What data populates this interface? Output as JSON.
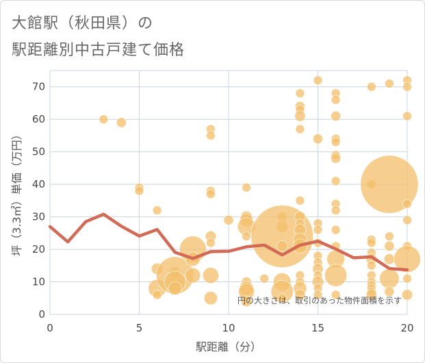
{
  "title_line1": "大館駅（秋田県）の",
  "title_line2": "駅距離別中古戸建て価格",
  "chart_data": {
    "type": "scatter",
    "xlabel": "駅距離（分）",
    "ylabel": "坪（3.3㎡）単価（万円）",
    "xlim": [
      0,
      20
    ],
    "ylim": [
      0,
      75
    ],
    "xticks": [
      0,
      5,
      10,
      15,
      20
    ],
    "yticks": [
      0,
      10,
      20,
      30,
      40,
      50,
      60,
      70
    ],
    "grid": true,
    "note": "円の大きさは、取引のあった物件面積を示す",
    "bubble_color": "#f3bf6b",
    "line_color": "#d36a55",
    "bubbles": [
      {
        "x": 3,
        "y": 60,
        "s": 1
      },
      {
        "x": 4,
        "y": 59,
        "s": 1.1
      },
      {
        "x": 5,
        "y": 39,
        "s": 1
      },
      {
        "x": 5,
        "y": 38,
        "s": 1
      },
      {
        "x": 6,
        "y": 32,
        "s": 1
      },
      {
        "x": 6,
        "y": 14,
        "s": 1.3
      },
      {
        "x": 6,
        "y": 8,
        "s": 2
      },
      {
        "x": 6,
        "y": 6,
        "s": 1
      },
      {
        "x": 7,
        "y": 13,
        "s": 1.2
      },
      {
        "x": 7,
        "y": 12,
        "s": 4.2
      },
      {
        "x": 7,
        "y": 10,
        "s": 2.4
      },
      {
        "x": 7,
        "y": 8,
        "s": 1.5
      },
      {
        "x": 8,
        "y": 20,
        "s": 3
      },
      {
        "x": 8,
        "y": 17,
        "s": 1.6
      },
      {
        "x": 8,
        "y": 12,
        "s": 1.7
      },
      {
        "x": 9,
        "y": 57,
        "s": 1
      },
      {
        "x": 9,
        "y": 55,
        "s": 1
      },
      {
        "x": 9,
        "y": 38,
        "s": 1
      },
      {
        "x": 9,
        "y": 37,
        "s": 1
      },
      {
        "x": 9,
        "y": 24,
        "s": 1.2
      },
      {
        "x": 9,
        "y": 22,
        "s": 1
      },
      {
        "x": 9,
        "y": 12,
        "s": 1.8
      },
      {
        "x": 9,
        "y": 5,
        "s": 1.5
      },
      {
        "x": 10,
        "y": 29,
        "s": 1.1
      },
      {
        "x": 11,
        "y": 39,
        "s": 1
      },
      {
        "x": 11,
        "y": 30,
        "s": 1.3
      },
      {
        "x": 11,
        "y": 29,
        "s": 1.5
      },
      {
        "x": 11,
        "y": 27,
        "s": 2
      },
      {
        "x": 11,
        "y": 24,
        "s": 1
      },
      {
        "x": 11,
        "y": 10,
        "s": 1.1
      },
      {
        "x": 11,
        "y": 8,
        "s": 1.6
      },
      {
        "x": 11,
        "y": 7,
        "s": 1.8
      },
      {
        "x": 11,
        "y": 4,
        "s": 1.2
      },
      {
        "x": 12,
        "y": 11,
        "s": 1
      },
      {
        "x": 13,
        "y": 30,
        "s": 1.1
      },
      {
        "x": 13,
        "y": 27,
        "s": 1.3
      },
      {
        "x": 13,
        "y": 24,
        "s": 7
      },
      {
        "x": 13,
        "y": 21,
        "s": 1.2
      },
      {
        "x": 13,
        "y": 10,
        "s": 2
      },
      {
        "x": 13,
        "y": 7,
        "s": 2.5
      },
      {
        "x": 13,
        "y": 5,
        "s": 1
      },
      {
        "x": 14,
        "y": 68,
        "s": 1
      },
      {
        "x": 14,
        "y": 64,
        "s": 1.1
      },
      {
        "x": 14,
        "y": 63,
        "s": 1
      },
      {
        "x": 14,
        "y": 61,
        "s": 1.2
      },
      {
        "x": 14,
        "y": 57,
        "s": 1
      },
      {
        "x": 14,
        "y": 35,
        "s": 1
      },
      {
        "x": 14,
        "y": 30,
        "s": 1.2
      },
      {
        "x": 14,
        "y": 28,
        "s": 1
      },
      {
        "x": 14,
        "y": 26,
        "s": 1.3
      },
      {
        "x": 14,
        "y": 23,
        "s": 1.5
      },
      {
        "x": 14,
        "y": 21,
        "s": 1.6
      },
      {
        "x": 14,
        "y": 12,
        "s": 1
      },
      {
        "x": 14,
        "y": 10,
        "s": 1
      },
      {
        "x": 14,
        "y": 8,
        "s": 1.5
      },
      {
        "x": 14,
        "y": 6,
        "s": 1.2
      },
      {
        "x": 15,
        "y": 72,
        "s": 1
      },
      {
        "x": 15,
        "y": 54,
        "s": 1.1
      },
      {
        "x": 15,
        "y": 28,
        "s": 1
      },
      {
        "x": 15,
        "y": 26,
        "s": 1
      },
      {
        "x": 15,
        "y": 22,
        "s": 1
      },
      {
        "x": 15,
        "y": 18,
        "s": 1
      },
      {
        "x": 15,
        "y": 16,
        "s": 1
      },
      {
        "x": 15,
        "y": 14,
        "s": 1.2
      },
      {
        "x": 15,
        "y": 12,
        "s": 1
      },
      {
        "x": 15,
        "y": 10,
        "s": 1.3
      },
      {
        "x": 15,
        "y": 8,
        "s": 1
      },
      {
        "x": 15,
        "y": 6,
        "s": 1
      },
      {
        "x": 16,
        "y": 68,
        "s": 1
      },
      {
        "x": 16,
        "y": 66,
        "s": 1
      },
      {
        "x": 16,
        "y": 61,
        "s": 1.1
      },
      {
        "x": 16,
        "y": 54,
        "s": 1
      },
      {
        "x": 16,
        "y": 53,
        "s": 1
      },
      {
        "x": 16,
        "y": 49,
        "s": 1
      },
      {
        "x": 16,
        "y": 48,
        "s": 1.1
      },
      {
        "x": 16,
        "y": 41,
        "s": 1
      },
      {
        "x": 16,
        "y": 34,
        "s": 1
      },
      {
        "x": 16,
        "y": 32,
        "s": 1
      },
      {
        "x": 16,
        "y": 26,
        "s": 1
      },
      {
        "x": 16,
        "y": 21,
        "s": 1
      },
      {
        "x": 16,
        "y": 17,
        "s": 2
      },
      {
        "x": 16,
        "y": 12,
        "s": 2.5
      },
      {
        "x": 16,
        "y": 6,
        "s": 1
      },
      {
        "x": 18,
        "y": 70,
        "s": 1
      },
      {
        "x": 18,
        "y": 40,
        "s": 1
      },
      {
        "x": 18,
        "y": 23,
        "s": 1
      },
      {
        "x": 18,
        "y": 22,
        "s": 1
      },
      {
        "x": 18,
        "y": 19,
        "s": 1
      },
      {
        "x": 18,
        "y": 17,
        "s": 1.2
      },
      {
        "x": 18,
        "y": 15,
        "s": 1
      },
      {
        "x": 18,
        "y": 12,
        "s": 1
      },
      {
        "x": 18,
        "y": 10,
        "s": 1
      },
      {
        "x": 18,
        "y": 9,
        "s": 1
      },
      {
        "x": 18,
        "y": 8,
        "s": 1
      },
      {
        "x": 18,
        "y": 7,
        "s": 1
      },
      {
        "x": 18,
        "y": 6,
        "s": 1.2
      },
      {
        "x": 19,
        "y": 71,
        "s": 1
      },
      {
        "x": 19,
        "y": 40,
        "s": 6.5
      },
      {
        "x": 19,
        "y": 24,
        "s": 1
      },
      {
        "x": 19,
        "y": 21,
        "s": 1.1
      },
      {
        "x": 19,
        "y": 17,
        "s": 1.2
      },
      {
        "x": 19,
        "y": 11,
        "s": 2.2
      },
      {
        "x": 19,
        "y": 7,
        "s": 1.1
      },
      {
        "x": 20,
        "y": 72,
        "s": 1
      },
      {
        "x": 20,
        "y": 70,
        "s": 1
      },
      {
        "x": 20,
        "y": 61,
        "s": 1
      },
      {
        "x": 20,
        "y": 34,
        "s": 1
      },
      {
        "x": 20,
        "y": 29,
        "s": 1
      },
      {
        "x": 20,
        "y": 21,
        "s": 1
      },
      {
        "x": 20,
        "y": 17,
        "s": 3
      },
      {
        "x": 20,
        "y": 11,
        "s": 1
      },
      {
        "x": 20,
        "y": 6,
        "s": 1.2
      }
    ],
    "trend": {
      "x": [
        0,
        1,
        2,
        3,
        4,
        5,
        6,
        7,
        8,
        9,
        10,
        11,
        12,
        13,
        14,
        15,
        16,
        17,
        18,
        19,
        20
      ],
      "y": [
        27,
        22.3,
        28.5,
        30.8,
        27.1,
        24.1,
        26.1,
        19.1,
        17.2,
        19.3,
        19.4,
        20.8,
        21.3,
        18.3,
        21.3,
        22.5,
        20.1,
        17.4,
        17.7,
        14.1,
        13.7
      ]
    }
  }
}
